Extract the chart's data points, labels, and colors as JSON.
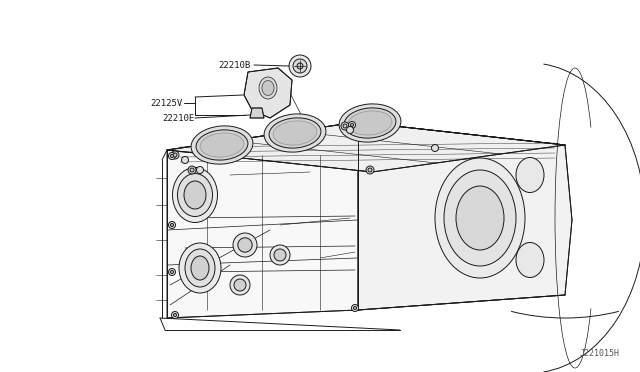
{
  "bg_color": "#ffffff",
  "line_color": "#1a1a1a",
  "label_color": "#1a1a1a",
  "diagram_id": "J221015H",
  "figsize": [
    6.4,
    3.72
  ],
  "dpi": 100,
  "label_22210B": "22210B",
  "label_22125V": "22125V",
  "label_22210E": "22210E",
  "label_fontsize": 6.5,
  "note_fontsize": 6.0
}
